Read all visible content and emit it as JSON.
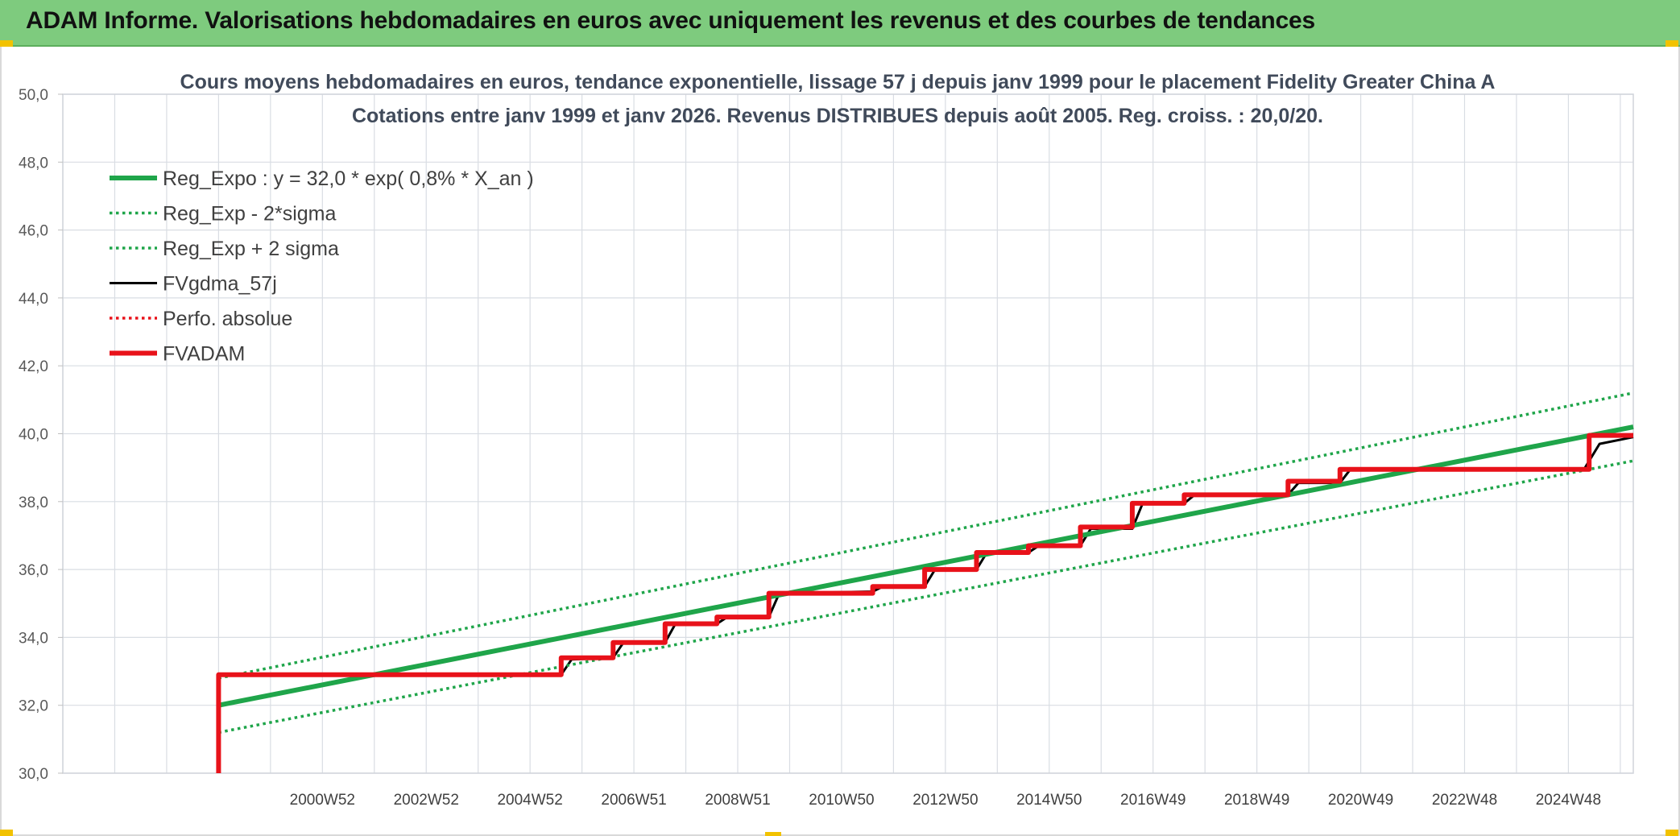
{
  "banner": {
    "title": "ADAM Informe. Valorisations hebdomadaires en euros avec uniquement les revenus et des courbes de tendances"
  },
  "colors": {
    "banner_bg": "#7ecb7e",
    "regression": "#1fa54a",
    "moving_average": "#000000",
    "fvadam": "#e8121a",
    "perfo": "#e8121a",
    "grid": "#d9dde3"
  },
  "chart_data": {
    "type": "line",
    "title": "Cours moyens hebdomadaires en euros, tendance exponentielle, lissage 57 j depuis janv 1999 pour le placement Fidelity Greater China A",
    "subtitle": "Cotations entre janv 1999 et janv 2026. Revenus DISTRIBUES depuis août 2005. Reg. croiss. : 20,0/20.",
    "xlabel": "",
    "ylabel": "",
    "ylim": [
      30,
      50
    ],
    "y_ticks": [
      "30,0",
      "32,0",
      "34,0",
      "36,0",
      "38,0",
      "40,0",
      "42,0",
      "44,0",
      "46,0",
      "48,0",
      "50,0"
    ],
    "x_tick_labels": [
      "2000W52",
      "2002W52",
      "2004W52",
      "2006W51",
      "2008W51",
      "2010W50",
      "2012W50",
      "2014W50",
      "2016W49",
      "2018W49",
      "2020W49",
      "2022W48",
      "2024W48"
    ],
    "x_tick_years": [
      2001.0,
      2003.0,
      2005.0,
      2007.0,
      2009.0,
      2011.0,
      2013.0,
      2015.0,
      2017.0,
      2019.0,
      2021.0,
      2023.0,
      2025.0
    ],
    "xlim": [
      1996.0,
      2026.25
    ],
    "grid": true,
    "legend_position": "top-left",
    "series": [
      {
        "name": "Reg_Expo : y = 32,0 * exp( 0,8% *  X_an )",
        "style": "solid-thick",
        "color": "#1fa54a",
        "points": [
          [
            1999.0,
            32.0
          ],
          [
            2026.25,
            40.2
          ]
        ]
      },
      {
        "name": "Reg_Exp - 2*sigma",
        "style": "dotted",
        "color": "#1fa54a",
        "points": [
          [
            1999.0,
            31.2
          ],
          [
            2026.25,
            39.2
          ]
        ]
      },
      {
        "name": "Reg_Exp + 2 sigma",
        "style": "dotted",
        "color": "#1fa54a",
        "points": [
          [
            1999.0,
            32.8
          ],
          [
            2026.25,
            41.2
          ]
        ]
      },
      {
        "name": "FVgdma_57j",
        "style": "solid",
        "color": "#000000",
        "points": [
          [
            1999.0,
            32.9
          ],
          [
            2005.6,
            32.9
          ],
          [
            2005.8,
            33.35
          ],
          [
            2006.6,
            33.4
          ],
          [
            2006.8,
            33.85
          ],
          [
            2007.6,
            33.85
          ],
          [
            2007.8,
            34.4
          ],
          [
            2008.6,
            34.4
          ],
          [
            2008.8,
            34.6
          ],
          [
            2009.6,
            34.6
          ],
          [
            2009.8,
            35.3
          ],
          [
            2011.6,
            35.35
          ],
          [
            2011.8,
            35.5
          ],
          [
            2012.6,
            35.5
          ],
          [
            2012.8,
            36.0
          ],
          [
            2013.6,
            36.0
          ],
          [
            2013.8,
            36.5
          ],
          [
            2014.6,
            36.5
          ],
          [
            2014.8,
            36.7
          ],
          [
            2015.6,
            36.7
          ],
          [
            2015.8,
            37.2
          ],
          [
            2016.6,
            37.2
          ],
          [
            2016.8,
            37.95
          ],
          [
            2017.6,
            37.95
          ],
          [
            2017.8,
            38.2
          ],
          [
            2019.6,
            38.2
          ],
          [
            2019.8,
            38.55
          ],
          [
            2020.6,
            38.55
          ],
          [
            2020.8,
            38.95
          ],
          [
            2025.3,
            38.95
          ],
          [
            2025.6,
            39.7
          ],
          [
            2026.25,
            39.9
          ]
        ]
      },
      {
        "name": "Perfo. absolue",
        "style": "dotted",
        "color": "#e8121a",
        "points": []
      },
      {
        "name": "FVADAM",
        "style": "solid-thick",
        "color": "#e8121a",
        "points": [
          [
            1999.0,
            30.0
          ],
          [
            1999.0,
            32.9
          ],
          [
            2005.6,
            32.9
          ],
          [
            2005.6,
            33.4
          ],
          [
            2006.6,
            33.4
          ],
          [
            2006.6,
            33.85
          ],
          [
            2007.6,
            33.85
          ],
          [
            2007.6,
            34.4
          ],
          [
            2008.6,
            34.4
          ],
          [
            2008.6,
            34.6
          ],
          [
            2009.6,
            34.6
          ],
          [
            2009.6,
            35.3
          ],
          [
            2011.6,
            35.3
          ],
          [
            2011.6,
            35.5
          ],
          [
            2012.6,
            35.5
          ],
          [
            2012.6,
            36.0
          ],
          [
            2013.6,
            36.0
          ],
          [
            2013.6,
            36.5
          ],
          [
            2014.6,
            36.5
          ],
          [
            2014.6,
            36.7
          ],
          [
            2015.6,
            36.7
          ],
          [
            2015.6,
            37.25
          ],
          [
            2016.6,
            37.25
          ],
          [
            2016.6,
            37.95
          ],
          [
            2017.6,
            37.95
          ],
          [
            2017.6,
            38.2
          ],
          [
            2019.6,
            38.2
          ],
          [
            2019.6,
            38.6
          ],
          [
            2020.6,
            38.6
          ],
          [
            2020.6,
            38.95
          ],
          [
            2025.4,
            38.95
          ],
          [
            2025.4,
            39.95
          ],
          [
            2026.25,
            39.95
          ]
        ]
      }
    ]
  }
}
